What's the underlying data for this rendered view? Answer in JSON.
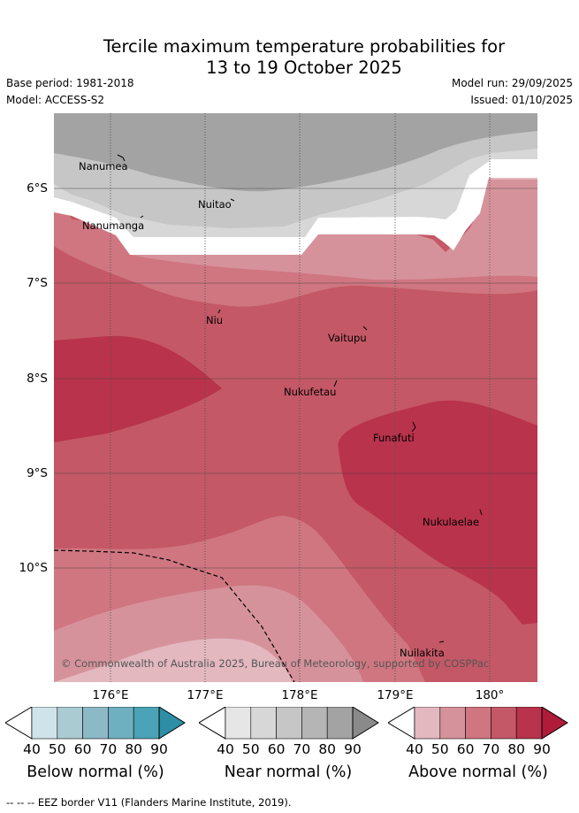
{
  "title": {
    "line1": "Tercile maximum temperature probabilities for",
    "line2": "13 to 19 October 2025"
  },
  "meta": {
    "base_period": "Base period: 1981-2018",
    "model": "Model: ACCESS-S2",
    "model_run": "Model run: 29/09/2025",
    "issued": "Issued: 01/10/2025"
  },
  "map": {
    "lat_labels": [
      "6°S",
      "7°S",
      "8°S",
      "9°S",
      "10°S"
    ],
    "lon_labels": [
      "176°E",
      "177°E",
      "178°E",
      "179°E",
      "180°"
    ],
    "places": [
      "Nanumea",
      "Nuitao",
      "Nanumanga",
      "Niu",
      "Vaitupu",
      "Nukufetau",
      "Funafuti",
      "Nukulaelae",
      "Nuilakita"
    ],
    "copyright": "© Commonwealth of Australia 2025, Bureau of Meteorology, supported by COSPPac"
  },
  "legend": {
    "ticks": [
      "40",
      "50",
      "60",
      "70",
      "80",
      "90"
    ],
    "below": {
      "title": "Below normal (%)",
      "colors": [
        "#cfe4ea",
        "#aacbd1",
        "#8cb9c6",
        "#6fb0c0",
        "#4aa3b6",
        "#2e8ea6"
      ]
    },
    "near": {
      "title": "Near normal (%)",
      "colors": [
        "#e6e6e6",
        "#d7d7d7",
        "#c6c6c6",
        "#b5b5b5",
        "#a3a3a3",
        "#8a8a8a"
      ]
    },
    "above": {
      "title": "Above normal (%)",
      "colors": [
        "#e3b8bf",
        "#d6929b",
        "#cf7680",
        "#c45866",
        "#b8334b",
        "#b01b3a"
      ]
    }
  },
  "footer": "--  --  -- EEZ border V11 (Flanders Marine Institute, 2019)."
}
